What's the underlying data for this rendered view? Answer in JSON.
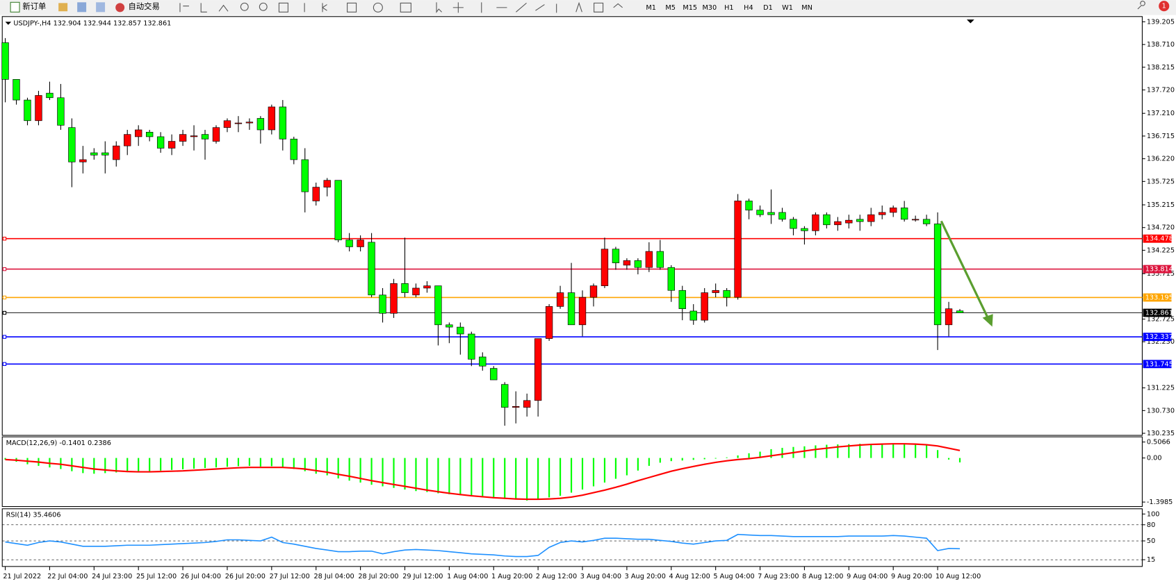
{
  "toolbar": {
    "new_order": "新订单",
    "auto_trading": "自动交易",
    "timeframes": [
      "M1",
      "M5",
      "M15",
      "M30",
      "H1",
      "H4",
      "D1",
      "W1",
      "MN"
    ],
    "notifications": 1
  },
  "chart_data": [
    {
      "type": "candlestick",
      "title": "USDJPY-,H4  132.904 132.944 132.857 132.861",
      "categories": [
        "21 Jul 2022",
        null,
        null,
        null,
        "22 Jul 04:00",
        null,
        null,
        null,
        "24 Jul 23:00",
        null,
        null,
        null,
        "25 Jul 12:00",
        null,
        null,
        null,
        "26 Jul 04:00",
        null,
        null,
        null,
        "26 Jul 20:00",
        null,
        null,
        null,
        "27 Jul 12:00",
        null,
        null,
        null,
        "28 Jul 04:00",
        null,
        null,
        null,
        "28 Jul 20:00",
        null,
        null,
        null,
        "29 Jul 12:00",
        null,
        null,
        null,
        "1 Aug 04:00",
        null,
        null,
        null,
        "1 Aug 20:00",
        null,
        null,
        null,
        "2 Aug 12:00",
        null,
        null,
        null,
        "3 Aug 04:00",
        null,
        null,
        null,
        "3 Aug 20:00",
        null,
        null,
        null,
        "4 Aug 12:00",
        null,
        null,
        null,
        "5 Aug 04:00",
        null,
        null,
        null,
        "7 Aug 23:00",
        null,
        null,
        null,
        "8 Aug 12:00",
        null,
        null,
        null,
        "9 Aug 04:00",
        null,
        null,
        null,
        "9 Aug 20:00",
        null,
        null,
        null,
        "10 Aug 12:00",
        null,
        null
      ],
      "open": [
        138.75,
        137.95,
        137.5,
        137.05,
        137.65,
        137.55,
        136.9,
        136.15,
        136.35,
        136.35,
        136.2,
        136.5,
        136.7,
        136.8,
        136.7,
        136.45,
        136.6,
        136.7,
        136.75,
        136.6,
        136.9,
        137.0,
        137.0,
        137.1,
        136.85,
        137.35,
        136.65,
        136.2,
        135.3,
        135.6,
        135.75,
        134.45,
        134.3,
        134.4,
        133.25,
        132.85,
        133.5,
        133.25,
        133.4,
        133.45,
        132.6,
        132.55,
        132.4,
        131.9,
        131.65,
        131.3,
        130.8,
        130.8,
        130.95,
        132.3,
        133.0,
        133.3,
        132.6,
        133.2,
        133.45,
        134.25,
        133.9,
        134.0,
        133.85,
        134.2,
        133.85,
        133.35,
        132.9,
        132.7,
        133.3,
        133.35,
        133.2,
        135.3,
        135.1,
        135.05,
        135.05,
        134.9,
        134.7,
        134.65,
        135.0,
        134.78,
        134.82,
        134.9,
        134.85,
        135.0,
        135.05,
        135.15,
        134.9,
        134.9,
        134.8,
        132.6,
        132.904
      ],
      "high": [
        138.85,
        137.95,
        137.55,
        137.7,
        137.9,
        137.85,
        137.1,
        136.5,
        136.45,
        136.6,
        136.6,
        136.85,
        136.95,
        136.85,
        136.8,
        136.75,
        136.85,
        136.95,
        136.85,
        136.95,
        137.1,
        137.15,
        137.1,
        137.15,
        137.4,
        137.5,
        136.7,
        136.45,
        135.7,
        135.8,
        135.75,
        134.6,
        134.55,
        134.6,
        133.4,
        133.6,
        134.5,
        133.5,
        133.55,
        133.45,
        132.65,
        132.65,
        132.45,
        132.0,
        131.7,
        131.35,
        131.15,
        131.1,
        132.3,
        133.05,
        133.45,
        133.95,
        133.35,
        133.5,
        134.5,
        134.3,
        134.05,
        134.05,
        134.4,
        134.45,
        133.9,
        133.45,
        133.05,
        133.4,
        133.5,
        133.4,
        135.45,
        135.35,
        135.2,
        135.55,
        135.15,
        134.95,
        134.75,
        135.05,
        135.05,
        134.95,
        135.0,
        135.0,
        135.15,
        135.2,
        135.2,
        135.3,
        134.98,
        135.0,
        135.05,
        133.1,
        132.944
      ],
      "low": [
        137.45,
        137.4,
        136.95,
        136.95,
        137.5,
        136.85,
        135.6,
        135.9,
        136.2,
        135.9,
        136.05,
        136.3,
        136.5,
        136.6,
        136.35,
        136.3,
        136.5,
        136.4,
        136.2,
        136.55,
        136.8,
        136.8,
        136.85,
        136.55,
        136.75,
        136.4,
        136.1,
        135.05,
        135.2,
        135.4,
        134.4,
        134.2,
        134.2,
        133.2,
        132.65,
        132.75,
        133.2,
        133.2,
        133.3,
        132.15,
        132.2,
        131.95,
        131.7,
        131.6,
        131.4,
        130.4,
        130.45,
        130.6,
        130.6,
        132.25,
        132.95,
        132.6,
        132.35,
        133.0,
        133.4,
        133.8,
        133.8,
        133.7,
        133.75,
        133.8,
        133.1,
        132.7,
        132.6,
        132.65,
        133.2,
        133.0,
        133.15,
        134.9,
        134.95,
        134.8,
        134.85,
        134.55,
        134.35,
        134.55,
        134.7,
        134.65,
        134.7,
        134.65,
        134.75,
        134.9,
        134.95,
        134.85,
        134.85,
        134.75,
        132.05,
        132.35,
        132.857
      ],
      "close": [
        137.95,
        137.5,
        137.05,
        137.6,
        137.55,
        136.95,
        136.15,
        136.2,
        136.3,
        136.3,
        136.5,
        136.75,
        136.85,
        136.7,
        136.45,
        136.6,
        136.75,
        136.72,
        136.65,
        136.9,
        137.05,
        137.0,
        137.02,
        136.85,
        137.35,
        136.65,
        136.2,
        135.5,
        135.6,
        135.75,
        134.45,
        134.3,
        134.45,
        133.25,
        132.85,
        133.5,
        133.3,
        133.4,
        133.45,
        132.6,
        132.55,
        132.4,
        131.85,
        131.7,
        131.4,
        130.8,
        130.82,
        130.95,
        132.3,
        133.0,
        133.3,
        132.6,
        133.2,
        133.45,
        134.25,
        133.95,
        134.0,
        133.85,
        134.2,
        133.85,
        133.35,
        132.95,
        132.7,
        133.3,
        133.35,
        133.2,
        135.3,
        135.1,
        135.0,
        135.0,
        134.9,
        134.7,
        134.65,
        135.0,
        134.78,
        134.85,
        134.88,
        134.85,
        135.0,
        135.05,
        135.15,
        134.9,
        134.9,
        134.8,
        132.6,
        132.95,
        132.861
      ],
      "up_color": "#ff0000",
      "down_color": "#00ff00",
      "ylim": [
        130.19,
        139.32
      ],
      "yticks": [
        139.205,
        {
          "value": 138.71,
          "label": "138.710"
        },
        138.215,
        {
          "value": 137.72,
          "label": "137.720"
        },
        {
          "value": 137.21,
          "label": "137.210"
        },
        136.715,
        {
          "value": 136.22,
          "label": "136.220"
        },
        135.725,
        135.215,
        {
          "value": 134.72,
          "label": "134.720"
        },
        134.225,
        133.715,
        132.725,
        {
          "value": 132.23,
          "label": "132.230"
        },
        131.225,
        {
          "value": 130.73,
          "label": "130.730"
        },
        130.235
      ],
      "hlines": [
        {
          "value": 134.478,
          "color": "#ff0000"
        },
        {
          "value": 133.814,
          "color": "#dc143c"
        },
        {
          "value": 133.195,
          "color": "#ffa500"
        },
        {
          "value": 132.861,
          "color": "#000000"
        },
        {
          "value": 132.337,
          "color": "#0000ff"
        },
        {
          "value": 131.745,
          "color": "#0000ff"
        }
      ]
    },
    {
      "type": "macd",
      "title": "MACD(12,26,9) -0.1401 0.2386",
      "histogram": {
        "color": "#00ff00",
        "values": [
          -0.05,
          -0.12,
          -0.2,
          -0.25,
          -0.3,
          -0.35,
          -0.42,
          -0.48,
          -0.5,
          -0.48,
          -0.46,
          -0.45,
          -0.44,
          -0.42,
          -0.4,
          -0.38,
          -0.36,
          -0.34,
          -0.32,
          -0.3,
          -0.28,
          -0.26,
          -0.25,
          -0.27,
          -0.26,
          -0.3,
          -0.35,
          -0.42,
          -0.5,
          -0.55,
          -0.65,
          -0.72,
          -0.78,
          -0.85,
          -0.9,
          -0.95,
          -1.0,
          -1.05,
          -1.08,
          -1.12,
          -1.15,
          -1.18,
          -1.22,
          -1.25,
          -1.28,
          -1.3,
          -1.32,
          -1.35,
          -1.3,
          -1.25,
          -1.2,
          -1.1,
          -1.0,
          -0.9,
          -0.78,
          -0.66,
          -0.55,
          -0.4,
          -0.25,
          -0.15,
          -0.1,
          -0.08,
          -0.06,
          -0.04,
          -0.02,
          0.02,
          0.08,
          0.15,
          0.2,
          0.28,
          0.32,
          0.35,
          0.37,
          0.4,
          0.42,
          0.43,
          0.44,
          0.45,
          0.45,
          0.45,
          0.45,
          0.44,
          0.43,
          0.4,
          0.25,
          -0.05,
          -0.1401
        ]
      },
      "signal": {
        "color": "#ff0000",
        "values": [
          -0.05,
          -0.07,
          -0.1,
          -0.13,
          -0.17,
          -0.2,
          -0.25,
          -0.3,
          -0.35,
          -0.38,
          -0.41,
          -0.43,
          -0.44,
          -0.44,
          -0.43,
          -0.42,
          -0.41,
          -0.39,
          -0.37,
          -0.35,
          -0.33,
          -0.31,
          -0.3,
          -0.3,
          -0.3,
          -0.3,
          -0.32,
          -0.35,
          -0.4,
          -0.45,
          -0.52,
          -0.58,
          -0.65,
          -0.72,
          -0.78,
          -0.84,
          -0.9,
          -0.96,
          -1.02,
          -1.07,
          -1.12,
          -1.16,
          -1.2,
          -1.23,
          -1.26,
          -1.28,
          -1.3,
          -1.31,
          -1.31,
          -1.3,
          -1.28,
          -1.24,
          -1.18,
          -1.1,
          -1.02,
          -0.93,
          -0.83,
          -0.72,
          -0.62,
          -0.52,
          -0.42,
          -0.34,
          -0.27,
          -0.2,
          -0.14,
          -0.09,
          -0.05,
          -0.02,
          0.02,
          0.07,
          0.12,
          0.17,
          0.22,
          0.27,
          0.31,
          0.35,
          0.38,
          0.41,
          0.43,
          0.44,
          0.45,
          0.45,
          0.44,
          0.42,
          0.38,
          0.31,
          0.2386
        ]
      },
      "ylim": [
        -1.54,
        0.67
      ],
      "yticks": [
        0.5066,
        {
          "value": 0,
          "label": "0.00"
        },
        -1.3985
      ]
    },
    {
      "type": "line",
      "title": "RSI(14) 35.4606",
      "color": "#1e90ff",
      "values": [
        48,
        45,
        42,
        47,
        50,
        48,
        44,
        40,
        40,
        40,
        41,
        42,
        42,
        42,
        43,
        44,
        45,
        46,
        47,
        49,
        52,
        52,
        51,
        50,
        57,
        47,
        44,
        40,
        36,
        33,
        30,
        30,
        31,
        31,
        26,
        30,
        33,
        34,
        33,
        32,
        30,
        28,
        26,
        25,
        24,
        22,
        21,
        21,
        23,
        38,
        47,
        50,
        48,
        51,
        55,
        55,
        54,
        53,
        53,
        51,
        49,
        46,
        44,
        47,
        50,
        51,
        62,
        61,
        60,
        60,
        59,
        58,
        58,
        58,
        58,
        58,
        59,
        59,
        59,
        59,
        60,
        59,
        57,
        55,
        32,
        36,
        35.4606
      ],
      "ylim": [
        2.5,
        109.7
      ],
      "yticks": [
        100,
        80,
        50,
        15
      ],
      "levels": [
        80,
        50,
        15
      ]
    }
  ]
}
